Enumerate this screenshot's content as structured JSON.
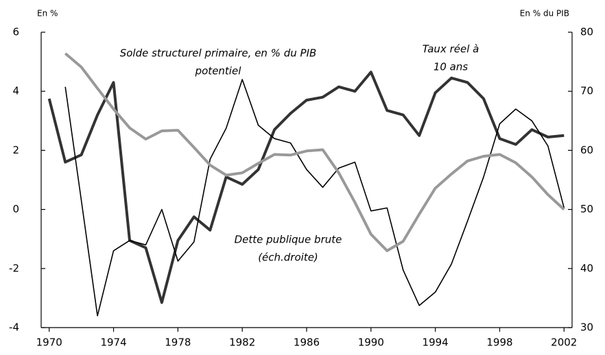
{
  "chart_data": {
    "type": "line",
    "y_label": "En %",
    "y2_label": "En % du PIB",
    "x": [
      1970,
      1971,
      1972,
      1973,
      1974,
      1975,
      1976,
      1977,
      1978,
      1979,
      1980,
      1981,
      1982,
      1983,
      1984,
      1985,
      1986,
      1987,
      1988,
      1989,
      1990,
      1991,
      1992,
      1993,
      1994,
      1995,
      1996,
      1997,
      1998,
      1999,
      2000,
      2001,
      2002
    ],
    "xlim": [
      1969.5,
      2002.5
    ],
    "xticks": [
      1970,
      1974,
      1978,
      1982,
      1986,
      1990,
      1994,
      1998,
      2002
    ],
    "ylim": [
      -4,
      6
    ],
    "yticks": [
      -4,
      -2,
      0,
      2,
      4,
      6
    ],
    "y2lim": [
      30,
      80
    ],
    "y2ticks": [
      30,
      40,
      50,
      60,
      70,
      80
    ],
    "series": [
      {
        "name": [
          "Taux réel à",
          "10 ans"
        ],
        "color": "#333333",
        "width": 4,
        "values": [
          3.75,
          1.6,
          1.85,
          3.2,
          4.3,
          -1.05,
          -1.3,
          -3.15,
          -1.05,
          -0.25,
          -0.7,
          1.1,
          0.85,
          1.35,
          2.7,
          3.25,
          3.7,
          3.8,
          4.15,
          4.0,
          4.65,
          3.35,
          3.2,
          2.5,
          3.95,
          4.45,
          4.3,
          3.75,
          2.4,
          2.2,
          2.7,
          2.45,
          2.5
        ]
      },
      {
        "name": [
          "Solde structurel primaire, en % du PIB",
          "potentiel"
        ],
        "color": "#000000",
        "width": 1.6,
        "values": [
          null,
          4.15,
          0.3,
          -3.6,
          -1.4,
          -1.05,
          -1.2,
          0.0,
          -1.75,
          -1.1,
          1.7,
          2.75,
          4.4,
          2.85,
          2.4,
          2.25,
          1.35,
          0.75,
          1.4,
          1.6,
          -0.05,
          0.05,
          -2.05,
          -3.25,
          -2.8,
          -1.85,
          -0.4,
          1.1,
          2.9,
          3.4,
          3.0,
          2.15,
          0.05
        ]
      },
      {
        "name": [
          "Dette publique brute",
          "(éch.droite)"
        ],
        "color": "#999999",
        "width": 4,
        "axis": "y2",
        "values": [
          null,
          76.4,
          74.1,
          70.5,
          67,
          63.8,
          61.9,
          63.3,
          63.4,
          60.5,
          57.5,
          55.8,
          56.2,
          57.8,
          59.3,
          59.2,
          59.9,
          60.1,
          56.2,
          51.2,
          45.8,
          43.0,
          44.6,
          49.2,
          53.6,
          56.0,
          58.2,
          59.0,
          59.3,
          57.9,
          55.5,
          52.5,
          50.0
        ]
      }
    ]
  }
}
